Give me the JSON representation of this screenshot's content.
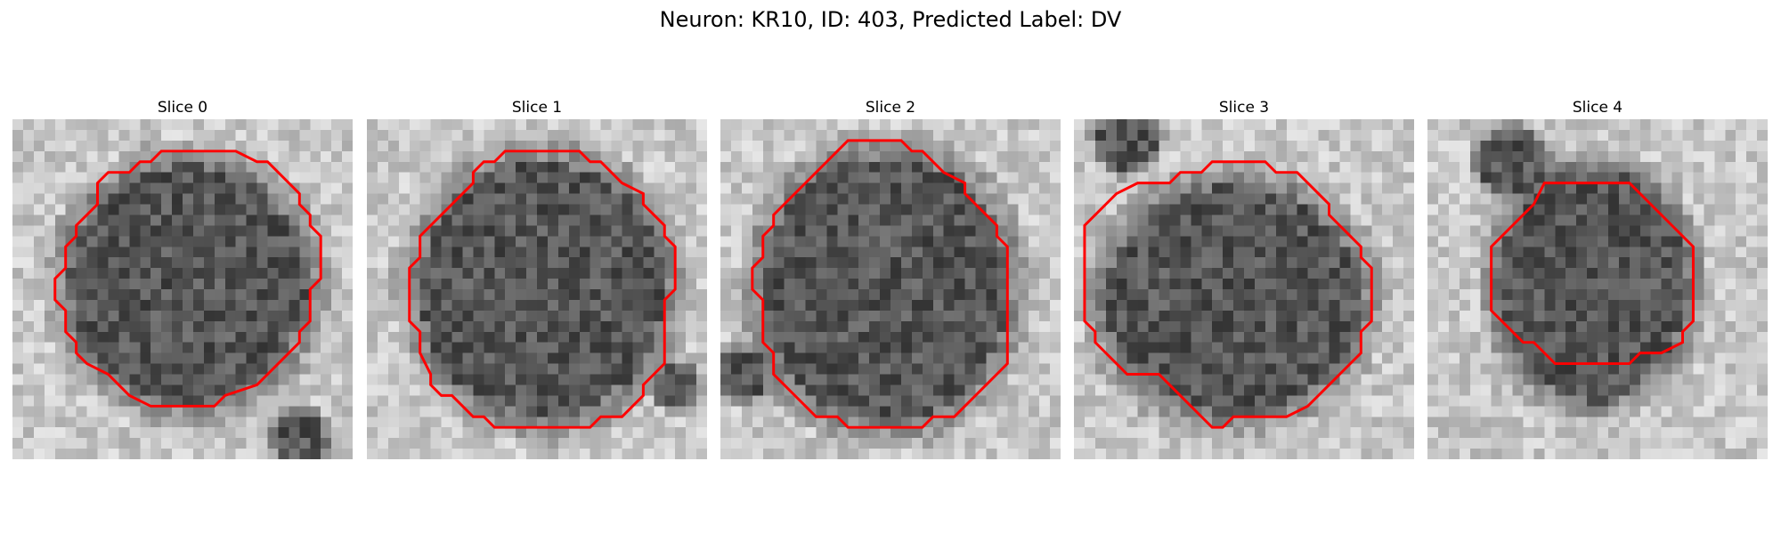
{
  "figure": {
    "title": "Neuron: KR10, ID: 403, Predicted Label: DV"
  },
  "outline_color": "#ff0000",
  "panels": [
    {
      "title": "Slice 0",
      "outline": [
        [
          15,
          3
        ],
        [
          21,
          3
        ],
        [
          23,
          4
        ],
        [
          24,
          4
        ],
        [
          26,
          6
        ],
        [
          27,
          7
        ],
        [
          27,
          8
        ],
        [
          28,
          9
        ],
        [
          28,
          10
        ],
        [
          29,
          11
        ],
        [
          29,
          15
        ],
        [
          28,
          16
        ],
        [
          28,
          19
        ],
        [
          27,
          20
        ],
        [
          27,
          21
        ],
        [
          25,
          23
        ],
        [
          24,
          24
        ],
        [
          23,
          25
        ],
        [
          20,
          26
        ],
        [
          19,
          27
        ],
        [
          13,
          27
        ],
        [
          11,
          26
        ],
        [
          10,
          25
        ],
        [
          9,
          24
        ],
        [
          7,
          23
        ],
        [
          6,
          22
        ],
        [
          6,
          21
        ],
        [
          5,
          20
        ],
        [
          5,
          18
        ],
        [
          4,
          17
        ],
        [
          4,
          15
        ],
        [
          5,
          14
        ],
        [
          5,
          12
        ],
        [
          6,
          11
        ],
        [
          6,
          10
        ],
        [
          8,
          8
        ],
        [
          8,
          6
        ],
        [
          9,
          5
        ],
        [
          11,
          5
        ],
        [
          12,
          4
        ],
        [
          13,
          4
        ],
        [
          14,
          3
        ]
      ]
    },
    {
      "title": "Slice 1",
      "outline": [
        [
          13,
          3
        ],
        [
          20,
          3
        ],
        [
          21,
          4
        ],
        [
          22,
          4
        ],
        [
          24,
          6
        ],
        [
          26,
          7
        ],
        [
          26,
          8
        ],
        [
          27,
          9
        ],
        [
          28,
          10
        ],
        [
          28,
          11
        ],
        [
          29,
          12
        ],
        [
          29,
          16
        ],
        [
          28,
          17
        ],
        [
          28,
          23
        ],
        [
          27,
          24
        ],
        [
          26,
          25
        ],
        [
          26,
          26
        ],
        [
          25,
          27
        ],
        [
          24,
          28
        ],
        [
          22,
          28
        ],
        [
          21,
          29
        ],
        [
          12,
          29
        ],
        [
          11,
          28
        ],
        [
          10,
          28
        ],
        [
          9,
          27
        ],
        [
          8,
          26
        ],
        [
          7,
          26
        ],
        [
          6,
          25
        ],
        [
          6,
          24
        ],
        [
          5,
          22
        ],
        [
          5,
          20
        ],
        [
          4,
          19
        ],
        [
          4,
          14
        ],
        [
          5,
          13
        ],
        [
          5,
          11
        ],
        [
          6,
          10
        ],
        [
          7,
          9
        ],
        [
          8,
          8
        ],
        [
          9,
          7
        ],
        [
          10,
          6
        ],
        [
          10,
          5
        ],
        [
          11,
          4
        ],
        [
          12,
          4
        ]
      ]
    },
    {
      "title": "Slice 2",
      "outline": [
        [
          12,
          2
        ],
        [
          17,
          2
        ],
        [
          18,
          3
        ],
        [
          19,
          3
        ],
        [
          21,
          5
        ],
        [
          23,
          6
        ],
        [
          23,
          7
        ],
        [
          24,
          8
        ],
        [
          25,
          9
        ],
        [
          26,
          10
        ],
        [
          26,
          11
        ],
        [
          27,
          12
        ],
        [
          27,
          23
        ],
        [
          26,
          24
        ],
        [
          25,
          25
        ],
        [
          24,
          26
        ],
        [
          23,
          27
        ],
        [
          22,
          28
        ],
        [
          20,
          28
        ],
        [
          19,
          29
        ],
        [
          12,
          29
        ],
        [
          11,
          28
        ],
        [
          9,
          28
        ],
        [
          8,
          27
        ],
        [
          7,
          26
        ],
        [
          6,
          25
        ],
        [
          5,
          24
        ],
        [
          5,
          22
        ],
        [
          4,
          21
        ],
        [
          4,
          17
        ],
        [
          3,
          16
        ],
        [
          3,
          14
        ],
        [
          4,
          13
        ],
        [
          4,
          11
        ],
        [
          5,
          10
        ],
        [
          5,
          9
        ],
        [
          6,
          8
        ],
        [
          7,
          7
        ],
        [
          8,
          6
        ],
        [
          9,
          5
        ],
        [
          10,
          4
        ],
        [
          11,
          3
        ]
      ]
    },
    {
      "title": "Slice 3",
      "outline": [
        [
          13,
          4
        ],
        [
          18,
          4
        ],
        [
          19,
          5
        ],
        [
          21,
          5
        ],
        [
          22,
          6
        ],
        [
          23,
          7
        ],
        [
          24,
          8
        ],
        [
          24,
          9
        ],
        [
          25,
          10
        ],
        [
          26,
          11
        ],
        [
          27,
          12
        ],
        [
          27,
          13
        ],
        [
          28,
          14
        ],
        [
          28,
          19
        ],
        [
          27,
          20
        ],
        [
          27,
          22
        ],
        [
          25,
          24
        ],
        [
          24,
          25
        ],
        [
          23,
          26
        ],
        [
          22,
          27
        ],
        [
          20,
          28
        ],
        [
          15,
          28
        ],
        [
          14,
          29
        ],
        [
          13,
          29
        ],
        [
          12,
          28
        ],
        [
          9,
          25
        ],
        [
          8,
          24
        ],
        [
          5,
          24
        ],
        [
          4,
          23
        ],
        [
          3,
          22
        ],
        [
          2,
          21
        ],
        [
          2,
          20
        ],
        [
          1,
          19
        ],
        [
          1,
          10
        ],
        [
          2,
          9
        ],
        [
          3,
          8
        ],
        [
          4,
          7
        ],
        [
          6,
          6
        ],
        [
          9,
          6
        ],
        [
          10,
          5
        ],
        [
          12,
          5
        ]
      ]
    },
    {
      "title": "Slice 4",
      "outline": [
        [
          11,
          6
        ],
        [
          19,
          6
        ],
        [
          20,
          7
        ],
        [
          21,
          8
        ],
        [
          22,
          9
        ],
        [
          23,
          10
        ],
        [
          24,
          11
        ],
        [
          25,
          12
        ],
        [
          25,
          19
        ],
        [
          24,
          20
        ],
        [
          24,
          21
        ],
        [
          22,
          22
        ],
        [
          20,
          22
        ],
        [
          19,
          23
        ],
        [
          12,
          23
        ],
        [
          11,
          22
        ],
        [
          10,
          21
        ],
        [
          9,
          21
        ],
        [
          7,
          19
        ],
        [
          6,
          18
        ],
        [
          6,
          12
        ],
        [
          7,
          11
        ],
        [
          8,
          10
        ],
        [
          9,
          9
        ],
        [
          10,
          8
        ]
      ]
    }
  ]
}
